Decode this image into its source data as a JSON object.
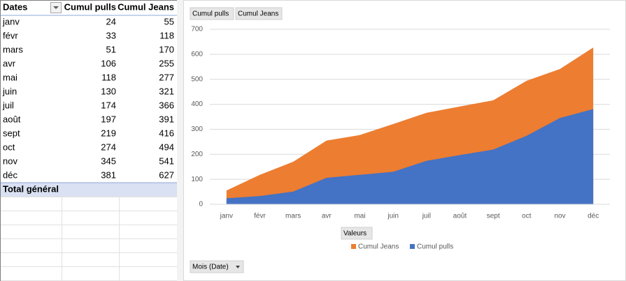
{
  "table": {
    "headers": [
      "Dates",
      "Cumul pulls",
      "Cumul Jeans"
    ],
    "total_label": "Total général"
  },
  "buttons": {
    "filters": [
      "Cumul pulls",
      "Cumul Jeans"
    ],
    "values": "Valeurs",
    "axis": "Mois (Date)"
  },
  "chart_data": {
    "type": "area",
    "categories": [
      "janv",
      "févr",
      "mars",
      "avr",
      "mai",
      "juin",
      "juil",
      "août",
      "sept",
      "oct",
      "nov",
      "déc"
    ],
    "series": [
      {
        "name": "Cumul pulls",
        "color": "#4472c4",
        "values": [
          24,
          33,
          51,
          106,
          118,
          130,
          174,
          197,
          219,
          274,
          345,
          381
        ]
      },
      {
        "name": "Cumul Jeans",
        "color": "#ed7d31",
        "values": [
          55,
          118,
          170,
          255,
          277,
          321,
          366,
          391,
          416,
          494,
          541,
          627
        ]
      }
    ],
    "ylim": [
      0,
      700
    ],
    "yticks": [
      0,
      100,
      200,
      300,
      400,
      500,
      600,
      700
    ],
    "grid": true,
    "legend": "bottom"
  }
}
